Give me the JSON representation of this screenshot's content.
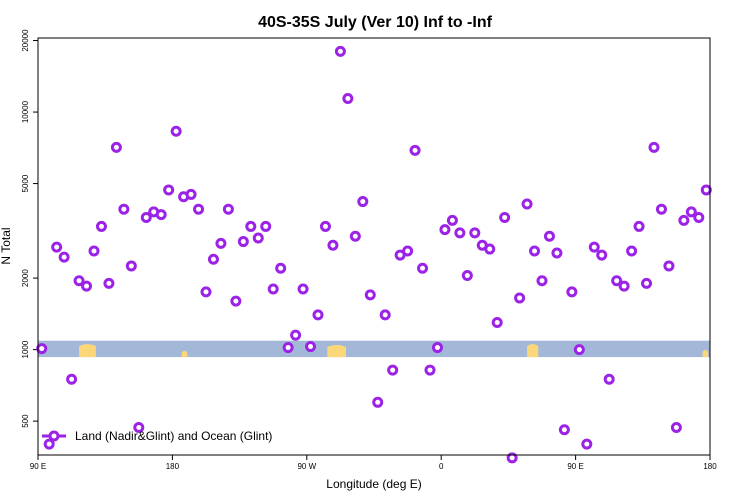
{
  "chart_data": {
    "type": "scatter",
    "title": "40S-35S July (Ver 10)   Inf to -Inf",
    "xlabel": "Longitude (deg E)",
    "ylabel": "N Total",
    "y_scale": "log",
    "xlim": [
      90,
      450
    ],
    "ylim": [
      360,
      20500
    ],
    "x_ticks": [
      {
        "value": 90,
        "label": "90 E"
      },
      {
        "value": 162,
        "label": "180"
      },
      {
        "value": 234,
        "label": "90 W"
      },
      {
        "value": 306,
        "label": "0"
      },
      {
        "value": 378,
        "label": "90 E"
      },
      {
        "value": 450,
        "label": "180"
      }
    ],
    "y_ticks": [
      {
        "value": 500,
        "label": "500"
      },
      {
        "value": 1000,
        "label": "1000"
      },
      {
        "value": 2000,
        "label": "2000"
      },
      {
        "value": 5000,
        "label": "5000"
      },
      {
        "value": 10000,
        "label": "10000"
      },
      {
        "value": 20000,
        "label": "20000"
      }
    ],
    "land_band": {
      "y_low": 930,
      "y_high": 1090,
      "ocean_color": "#a3b8d9",
      "land_color": "#fcd77a"
    },
    "series": [
      {
        "name": "Land (Nadir&Glint) and Ocean (Glint)",
        "color": "#9b22e6",
        "marker": "circle-open",
        "x": [
          92,
          96,
          100,
          104,
          108,
          112,
          116,
          120,
          124,
          128,
          132,
          136,
          140,
          144,
          148,
          152,
          156,
          160,
          164,
          168,
          172,
          176,
          180,
          184,
          188,
          192,
          196,
          200,
          204,
          208,
          212,
          216,
          220,
          224,
          228,
          232,
          236,
          240,
          244,
          248,
          252,
          256,
          260,
          264,
          268,
          272,
          276,
          280,
          284,
          288,
          292,
          296,
          300,
          304,
          308,
          312,
          316,
          320,
          324,
          328,
          332,
          336,
          340,
          344,
          348,
          352,
          356,
          360,
          364,
          368,
          372,
          376,
          380,
          384,
          388,
          392,
          396,
          400,
          404,
          408,
          412,
          416,
          420,
          424,
          428,
          432,
          436,
          440,
          444,
          448
        ],
        "y": [
          1010,
          400,
          2700,
          2450,
          750,
          1950,
          1850,
          2600,
          3300,
          1900,
          7100,
          3900,
          2250,
          470,
          3600,
          3800,
          3700,
          4700,
          8300,
          4400,
          4500,
          3900,
          1750,
          2400,
          2800,
          3900,
          1600,
          2850,
          3300,
          2950,
          3300,
          1800,
          2200,
          1020,
          1150,
          1800,
          1030,
          1400,
          3300,
          2750,
          18000,
          11400,
          3000,
          4200,
          1700,
          600,
          1400,
          820,
          2500,
          2600,
          6900,
          2200,
          820,
          1020,
          3200,
          3500,
          3100,
          2050,
          3100,
          2750,
          2650,
          1300,
          3600,
          350,
          1650,
          4100,
          2600,
          1950,
          3000,
          2550,
          460,
          1750,
          1000,
          400,
          2700,
          2500,
          750,
          1950,
          1850,
          2600,
          3300,
          1900,
          7100,
          3900,
          2250,
          470,
          3500,
          3800,
          3600,
          4700
        ]
      }
    ],
    "legend": {
      "position": "bottom-left"
    }
  }
}
